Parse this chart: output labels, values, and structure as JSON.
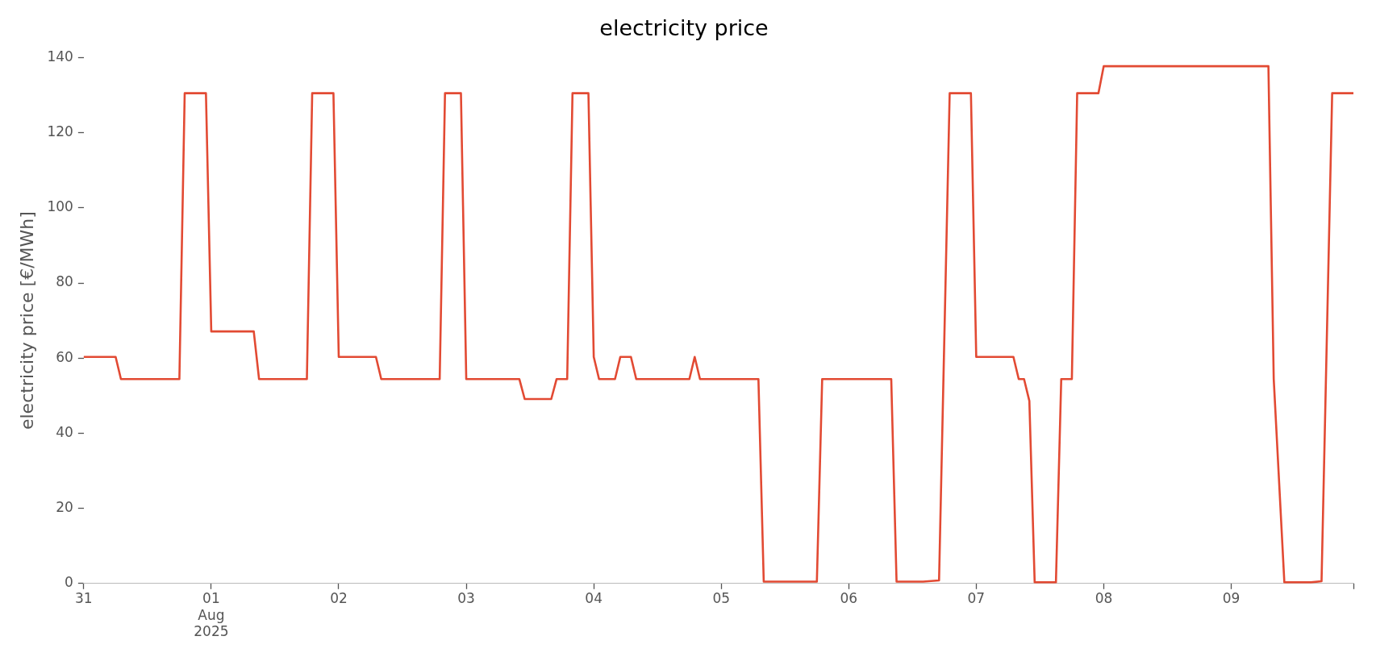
{
  "chart_data": {
    "type": "line",
    "title": "electricity price",
    "ylabel": "electricity price [€/MWh]",
    "xticks": [
      {
        "value": "2025-07-31",
        "label": "31"
      },
      {
        "value": "2025-08-01",
        "label": "01\nAug\n2025"
      },
      {
        "value": "2025-08-02",
        "label": "02"
      },
      {
        "value": "2025-08-03",
        "label": "03"
      },
      {
        "value": "2025-08-04",
        "label": "04"
      },
      {
        "value": "2025-08-05",
        "label": "05"
      },
      {
        "value": "2025-08-06",
        "label": "06"
      },
      {
        "value": "2025-08-07",
        "label": "07"
      },
      {
        "value": "2025-08-08",
        "label": "08"
      },
      {
        "value": "2025-08-09",
        "label": "09"
      },
      {
        "value": "2025-08-09T23:00",
        "label": null
      }
    ],
    "xlim": [
      "2025-07-31T00:00",
      "2025-08-09T23:00"
    ],
    "ylim": [
      0,
      140
    ],
    "yticks": [
      0,
      20,
      40,
      60,
      80,
      100,
      120,
      140
    ],
    "grid": false,
    "legend": false,
    "marker": "none",
    "line_style": "solid",
    "x": [
      "2025-07-31T00:00",
      "2025-07-31T06:00",
      "2025-07-31T07:00",
      "2025-07-31T18:00",
      "2025-07-31T19:00",
      "2025-07-31T23:00",
      "2025-08-01T00:00",
      "2025-08-01T08:00",
      "2025-08-01T09:00",
      "2025-08-01T18:00",
      "2025-08-01T19:00",
      "2025-08-01T23:00",
      "2025-08-02T00:00",
      "2025-08-02T07:00",
      "2025-08-02T08:00",
      "2025-08-02T19:00",
      "2025-08-02T20:00",
      "2025-08-02T23:00",
      "2025-08-03T00:00",
      "2025-08-03T10:00",
      "2025-08-03T11:00",
      "2025-08-03T16:00",
      "2025-08-03T17:00",
      "2025-08-03T19:00",
      "2025-08-03T20:00",
      "2025-08-03T23:00",
      "2025-08-04T00:00",
      "2025-08-04T01:00",
      "2025-08-04T04:00",
      "2025-08-04T05:00",
      "2025-08-04T07:00",
      "2025-08-04T08:00",
      "2025-08-04T18:00",
      "2025-08-04T19:00",
      "2025-08-04T20:00",
      "2025-08-05T07:00",
      "2025-08-05T08:00",
      "2025-08-05T18:00",
      "2025-08-05T19:00",
      "2025-08-06T08:00",
      "2025-08-06T09:00",
      "2025-08-06T14:00",
      "2025-08-06T17:00",
      "2025-08-06T19:00",
      "2025-08-06T23:00",
      "2025-08-07T00:00",
      "2025-08-07T07:00",
      "2025-08-07T08:00",
      "2025-08-07T09:00",
      "2025-08-07T10:00",
      "2025-08-07T11:00",
      "2025-08-07T15:00",
      "2025-08-07T16:00",
      "2025-08-07T18:00",
      "2025-08-07T19:00",
      "2025-08-07T23:00",
      "2025-08-08T00:00",
      "2025-08-09T07:00",
      "2025-08-09T08:00",
      "2025-08-09T10:00",
      "2025-08-09T15:00",
      "2025-08-09T17:00",
      "2025-08-09T19:00",
      "2025-08-09T23:00"
    ],
    "series": [
      {
        "color": "#e24a33",
        "values": [
          60.3,
          60.3,
          54.4,
          54.4,
          130.5,
          130.5,
          67.1,
          67.1,
          54.4,
          54.4,
          130.5,
          130.5,
          60.3,
          60.3,
          54.4,
          54.4,
          130.5,
          130.5,
          54.4,
          54.4,
          49.1,
          49.1,
          54.4,
          54.4,
          130.5,
          130.5,
          60.3,
          54.4,
          54.4,
          60.3,
          60.3,
          54.4,
          54.4,
          60.3,
          54.4,
          54.4,
          0.5,
          0.5,
          54.4,
          54.4,
          0.5,
          0.5,
          0.8,
          130.5,
          130.5,
          60.3,
          60.3,
          54.4,
          54.4,
          48.6,
          0.3,
          0.3,
          54.4,
          54.4,
          130.5,
          130.5,
          137.7,
          137.7,
          54.4,
          0.3,
          0.3,
          0.6,
          130.5,
          130.5
        ]
      }
    ]
  }
}
